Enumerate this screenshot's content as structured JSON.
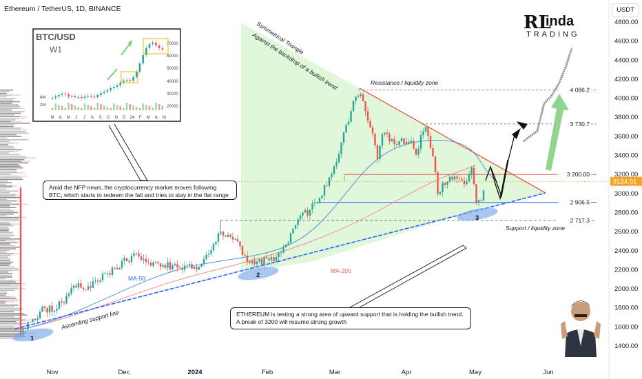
{
  "header": {
    "title": "Ethereum / TetherUS, 1D, BINANCE",
    "currency": "USDT"
  },
  "logo": {
    "mark": "RL",
    "word": "inda",
    "sub": "TRADING"
  },
  "chart_data": {
    "type": "candlestick",
    "y_ticks": [
      "4800.00",
      "4600.00",
      "4400.00",
      "4200.00",
      "4000.00",
      "3800.00",
      "3600.00",
      "3400.00",
      "3200.00",
      "3000.00",
      "2800.00",
      "2600.00",
      "2400.00",
      "2200.00",
      "2000.00",
      "1800.00",
      "1600.00",
      "1400.00"
    ],
    "x_ticks": [
      {
        "label": "Nov",
        "bold": false
      },
      {
        "label": "Dec",
        "bold": false
      },
      {
        "label": "2024",
        "bold": true
      },
      {
        "label": "Feb",
        "bold": false
      },
      {
        "label": "Mar",
        "bold": false
      },
      {
        "label": "Apr",
        "bold": false
      },
      {
        "label": "May",
        "bold": false
      },
      {
        "label": "Jun",
        "bold": false
      }
    ],
    "ylim": [
      1300,
      4900
    ],
    "last_price": {
      "label": "3124.01",
      "value": 3124.01
    },
    "levels": [
      {
        "label": "4 086.2",
        "value": 4086.2
      },
      {
        "label": "3 730.7",
        "value": 3730.7
      },
      {
        "label": "3 200.00",
        "value": 3200
      },
      {
        "label": "2 906.5",
        "value": 2906.5
      },
      {
        "label": "2 717.3",
        "value": 2717.3
      }
    ],
    "annotations": {
      "triangle": "Symmetrical Triangle",
      "triangle_sub": "Against the backdrop of a bullish trend",
      "resistance": "Resistance / liquidity zone",
      "support": "Support / liquidity zone",
      "ma50": "MA-50",
      "ma200": "MA-200",
      "ascending": "Ascending support line",
      "points": [
        "1",
        "2",
        "3"
      ]
    }
  },
  "inset": {
    "title": "BTC/USD",
    "timeframe": "W1",
    "y_ticks": [
      "70000",
      "60000",
      "50000",
      "40000",
      "30000",
      "20000"
    ],
    "vol_ticks": [
      "4M",
      "2M"
    ],
    "x_ticks": [
      "M",
      "A",
      "M",
      "J",
      "J",
      "A",
      "S",
      "O",
      "N",
      "D",
      "24",
      "F",
      "M",
      "A",
      "M"
    ]
  },
  "notes": {
    "nfp": "Amid the NFP news, the cryptocurrency market moves following BTC, which starts to redeem the fall and tries to stay in the flat range",
    "eth": "ETHEREUM is testing a strong area of upward support that is holding the bullish trend. A break of 3200 will resume strong growth"
  },
  "colors": {
    "up": "#26a69a",
    "down": "#ef5350",
    "line_blue": "#2962ff",
    "ma50": "#5b8fd9",
    "ma200": "#f08c8c",
    "resistance": "#e53935",
    "triangle_fill": "#c9f0b9",
    "highlight": "#7aa7e8"
  }
}
